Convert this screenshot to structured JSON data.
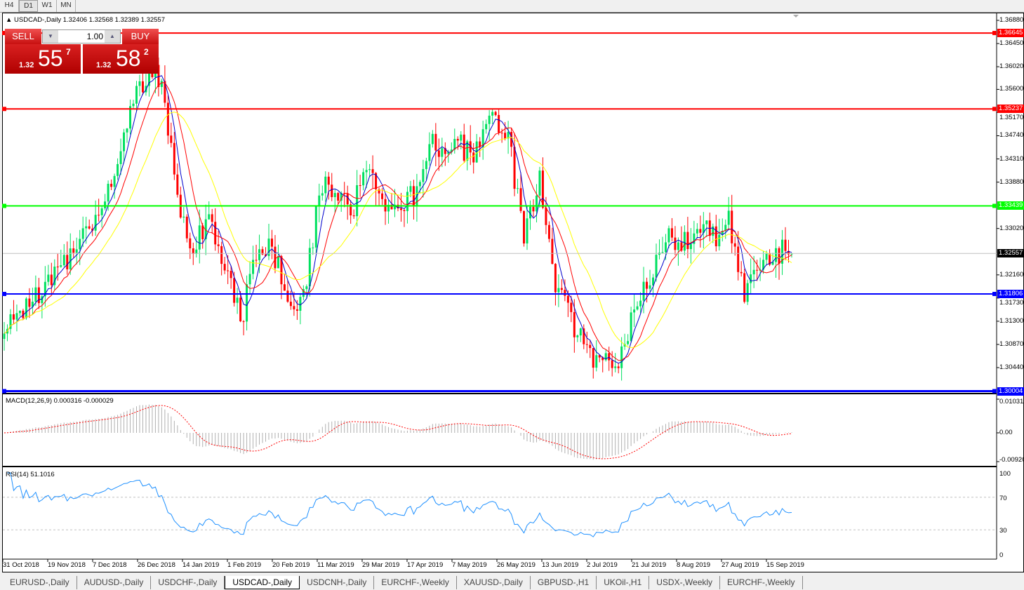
{
  "toolbar": {
    "timeframes": [
      {
        "label": "H4",
        "active": false
      },
      {
        "label": "D1",
        "active": true
      },
      {
        "label": "W1",
        "active": false
      },
      {
        "label": "MN",
        "active": false
      }
    ]
  },
  "chart": {
    "header": "USDCAD-,Daily  1.32406 1.32568 1.32389 1.32557",
    "symbol": "USDCAD-,Daily",
    "ohlc": {
      "open": "1.32406",
      "high": "1.32568",
      "low": "1.32389",
      "close": "1.32557"
    },
    "trade_panel": {
      "sell_label": "SELL",
      "buy_label": "BUY",
      "volume": "1.00",
      "sell_prefix": "1.32",
      "sell_big": "55",
      "sell_sup": "7",
      "buy_prefix": "1.32",
      "buy_big": "58",
      "buy_sup": "2"
    },
    "price_axis": [
      "1.36880",
      "1.36450",
      "1.36020",
      "1.35600",
      "1.35170",
      "1.34740",
      "1.34310",
      "1.33880",
      "1.33020",
      "1.32160",
      "1.31730",
      "1.31300",
      "1.30870",
      "1.30440"
    ],
    "levels": [
      {
        "price": "1.36645",
        "color": "#ff0000"
      },
      {
        "price": "1.35237",
        "color": "#ff0000"
      },
      {
        "price": "1.33439",
        "color": "#00ff00"
      },
      {
        "price": "1.31806",
        "color": "#0000ff"
      },
      {
        "price": "1.30004",
        "color": "#0000ff"
      }
    ],
    "current_price": "1.32557",
    "date_axis": [
      "31 Oct 2018",
      "19 Nov 2018",
      "7 Dec 2018",
      "26 Dec 2018",
      "14 Jan 2019",
      "1 Feb 2019",
      "20 Feb 2019",
      "11 Mar 2019",
      "29 Mar 2019",
      "17 Apr 2019",
      "7 May 2019",
      "26 May 2019",
      "13 Jun 2019",
      "2 Jul 2019",
      "21 Jul 2019",
      "8 Aug 2019",
      "27 Aug 2019",
      "15 Sep 2019"
    ],
    "colors": {
      "bull": "#00e060",
      "bear": "#ff0000",
      "ma_fast": "#0000cc",
      "ma_mid": "#ff0000",
      "ma_slow": "#ffff00",
      "rsi": "#1e90ff",
      "macd_hist": "#b0b0b0",
      "macd_signal": "#ff0000"
    }
  },
  "macd": {
    "label": "MACD(12,26,9) 0.000316 -0.000029",
    "axis": [
      "0.010311",
      "0.00",
      "-0.00920"
    ]
  },
  "rsi": {
    "label": "RSI(14) 51.1016",
    "axis": [
      "100",
      "70",
      "30",
      "0"
    ]
  },
  "chart_data": {
    "type": "candlestick",
    "weekly_closes_approx": [
      1.3101,
      1.315,
      1.3179,
      1.3205,
      1.3244,
      1.33,
      1.3335,
      1.34,
      1.3531,
      1.3583,
      1.3583,
      1.3361,
      1.327,
      1.3322,
      1.3244,
      1.3127,
      1.3257,
      1.327,
      1.3179,
      1.3166,
      1.3374,
      1.3387,
      1.3322,
      1.3413,
      1.3335,
      1.3335,
      1.3361,
      1.3466,
      1.3453,
      1.3453,
      1.344,
      1.3518,
      1.3466,
      1.3283,
      1.3387,
      1.3205,
      1.3127,
      1.3075,
      1.3049,
      1.3062,
      1.3153,
      1.3218,
      1.3283,
      1.327,
      1.3309,
      1.3283,
      1.3322,
      1.3179,
      1.3244,
      1.3257,
      1.32557
    ],
    "indicators": [
      "MA blue",
      "MA red",
      "MA yellow",
      "MACD(12,26,9)",
      "RSI(14)"
    ]
  },
  "tabs": [
    {
      "label": "EURUSD-,Daily"
    },
    {
      "label": "AUDUSD-,Daily"
    },
    {
      "label": "USDCHF-,Daily"
    },
    {
      "label": "USDCAD-,Daily",
      "active": true
    },
    {
      "label": "USDCNH-,Daily"
    },
    {
      "label": "EURCHF-,Weekly"
    },
    {
      "label": "XAUUSD-,Daily"
    },
    {
      "label": "GBPUSD-,H1"
    },
    {
      "label": "UKOil-,H1"
    },
    {
      "label": "USDX-,Weekly"
    },
    {
      "label": "EURCHF-,Weekly"
    }
  ]
}
